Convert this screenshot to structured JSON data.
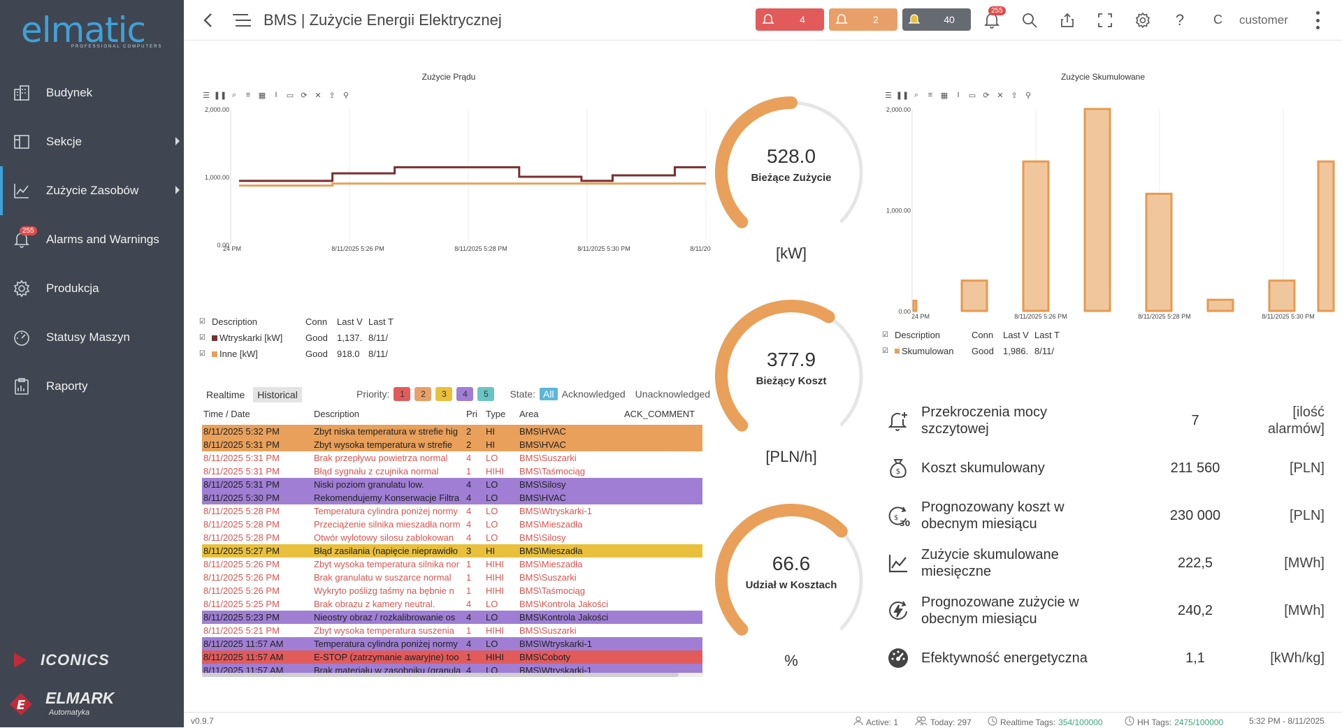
{
  "app": {
    "logo_text": "elmatic",
    "logo_tagline": "PROFESSIONAL COMPUTERS",
    "title": "BMS | Zużycie Energii Elektrycznej",
    "version": "v0.9.7",
    "footer_brand_1": "ICONICS",
    "footer_brand_2": "ELMARK",
    "footer_brand_2_sub": "Automatyka"
  },
  "sidebar": {
    "items": [
      {
        "label": "Budynek",
        "icon": "building-icon",
        "submenu": false
      },
      {
        "label": "Sekcje",
        "icon": "sections-icon",
        "submenu": true
      },
      {
        "label": "Zużycie Zasobów",
        "icon": "line-chart-icon",
        "submenu": true,
        "active": true
      },
      {
        "label": "Alarms and Warnings",
        "icon": "bell-icon",
        "submenu": false,
        "badge": "255"
      },
      {
        "label": "Produkcja",
        "icon": "gear-icon",
        "submenu": false
      },
      {
        "label": "Statusy Maszyn",
        "icon": "gauge-icon",
        "submenu": false
      },
      {
        "label": "Raporty",
        "icon": "clipboard-icon",
        "submenu": false
      }
    ]
  },
  "topbar": {
    "alarm_counts": [
      {
        "count": "4",
        "color": "#e15b5b"
      },
      {
        "count": "2",
        "color": "#e8a068"
      },
      {
        "count": "40",
        "color": "#666b72"
      }
    ],
    "notification_badge": "255",
    "user_initial": "C",
    "user_name": "customer"
  },
  "charts": {
    "trend": {
      "title": "Zużycie Prądu",
      "y_ticks": [
        "2,000.00",
        "1,000.00",
        "0.00"
      ],
      "x_ticks": [
        "24 PM",
        "8/11/2025 5:26 PM",
        "8/11/2025 5:28 PM",
        "8/11/2025 5:30 PM",
        "8/11/20"
      ],
      "legend_header": {
        "description": "Description",
        "conn": "Conn",
        "last_v": "Last V",
        "last_t": "Last T"
      },
      "legend_rows": [
        {
          "description": "Wtryskarki [kW]",
          "conn": "Good",
          "last_v": "1,137.",
          "last_t": "8/11/",
          "color": "#7b2e2e"
        },
        {
          "description": "Inne [kW]",
          "conn": "Good",
          "last_v": "918.0",
          "last_t": "8/11/",
          "color": "#e8a05a"
        }
      ]
    },
    "cumulative": {
      "title": "Zużycie Skumulowane",
      "y_ticks": [
        "2,000.00",
        "1,000.00",
        "0.00"
      ],
      "x_ticks": [
        "24 PM",
        "8/11/2025 5:26 PM",
        "8/11/2025 5:28 PM",
        "8/11/2025 5:30 PM"
      ],
      "legend_header": {
        "description": "Description",
        "conn": "Conn",
        "last_v": "Last V",
        "last_t": "Last T"
      },
      "legend_rows": [
        {
          "description": "Skumulowan",
          "conn": "Good",
          "last_v": "1,986.",
          "last_t": "8/11/",
          "color": "#e8b88a"
        }
      ]
    }
  },
  "chart_data": [
    {
      "type": "line",
      "title": "Zużycie Prądu",
      "ylim": [
        0,
        2000
      ],
      "x": [
        "5:24:00 PM",
        "5:24:30 PM",
        "5:25:00 PM",
        "5:25:30 PM",
        "5:26:00 PM",
        "5:26:30 PM",
        "5:27:00 PM",
        "5:27:30 PM",
        "5:28:00 PM",
        "5:28:30 PM",
        "5:29:00 PM",
        "5:29:30 PM",
        "5:30:00 PM",
        "5:30:30 PM",
        "5:31:00 PM",
        "5:31:30 PM"
      ],
      "series": [
        {
          "name": "Wtryskarki [kW]",
          "color": "#7b2e2e",
          "values": [
            940,
            940,
            940,
            1050,
            1050,
            1140,
            1140,
            1140,
            1140,
            1000,
            1000,
            940,
            1020,
            1020,
            1140,
            1140
          ]
        },
        {
          "name": "Inne [kW]",
          "color": "#e8a05a",
          "values": [
            870,
            870,
            870,
            900,
            900,
            900,
            900,
            900,
            900,
            900,
            900,
            900,
            900,
            900,
            900,
            900
          ]
        }
      ]
    },
    {
      "type": "bar",
      "title": "Zużycie Skumulowane",
      "ylim": [
        0,
        2000
      ],
      "categories": [
        "5:24:30 PM",
        "5:25:30 PM",
        "5:26:30 PM",
        "5:27:30 PM",
        "5:28:30 PM",
        "5:29:30 PM",
        "5:30:30 PM",
        "5:31:30 PM"
      ],
      "series": [
        {
          "name": "Skumulowan",
          "color": "#e8b88a",
          "values": [
            100,
            300,
            1480,
            2000,
            1160,
            110,
            300,
            1480
          ]
        }
      ]
    }
  ],
  "gauges": [
    {
      "value": "528.0",
      "label": "Bieżące Zużycie",
      "unit": "[kW]",
      "fraction": 0.5
    },
    {
      "value": "377.9",
      "label": "Bieżący Koszt",
      "unit": "[PLN/h]",
      "fraction": 0.62
    },
    {
      "value": "66.6",
      "label": "Udział w Kosztach",
      "unit": "%",
      "fraction": 0.67
    }
  ],
  "kpis": [
    {
      "icon": "bell-plus-icon",
      "label": "Przekroczenia mocy szczytowej",
      "value": "7",
      "unit": "[ilość alarmów]"
    },
    {
      "icon": "money-bag-icon",
      "label": "Koszt skumulowany",
      "value": "211 560",
      "unit": "[PLN]"
    },
    {
      "icon": "cost-forecast-icon",
      "label": "Prognozowany koszt w obecnym miesiącu",
      "value": "230 000",
      "unit": "[PLN]"
    },
    {
      "icon": "line-chart-icon",
      "label": "Zużycie skumulowane miesięczne",
      "value": "222,5",
      "unit": "[MWh]"
    },
    {
      "icon": "energy-forecast-icon",
      "label": "Prognozowane zużycie w obecnym miesiącu",
      "value": "240,2",
      "unit": "[MWh]"
    },
    {
      "icon": "speedometer-icon",
      "label": "Efektywność energetyczna",
      "value": "1,1",
      "unit": "[kWh/kg]"
    }
  ],
  "alarms": {
    "tabs": [
      "Realtime",
      "Historical"
    ],
    "priority_label": "Priority:",
    "priorities": [
      {
        "label": "1",
        "color": "#e15b5b"
      },
      {
        "label": "2",
        "color": "#e8a068"
      },
      {
        "label": "3",
        "color": "#e8c03c"
      },
      {
        "label": "4",
        "color": "#9f7ed4"
      },
      {
        "label": "5",
        "color": "#6bc4c4"
      }
    ],
    "state_label": "State:",
    "states": [
      "All",
      "Acknowledged",
      "Unacknowledged"
    ],
    "columns": [
      "Time / Date",
      "Description",
      "Pri",
      "Type",
      "Area",
      "ACK_COMMENT"
    ],
    "rows": [
      {
        "time": "8/11/2025 5:32 PM",
        "desc": "Zbyt niska temperatura w strefie hig",
        "pri": "2",
        "type": "HI",
        "area": "BMS\\HVAC",
        "ack": "",
        "bg": "#e8a05a",
        "fg": "#222"
      },
      {
        "time": "8/11/2025 5:31 PM",
        "desc": "Zbyt wysoka temperatura w strefie",
        "pri": "2",
        "type": "HI",
        "area": "BMS\\HVAC",
        "ack": "",
        "bg": "#e8a05a",
        "fg": "#222"
      },
      {
        "time": "8/11/2025 5:31 PM",
        "desc": "Brak przepływu powietrza normal",
        "pri": "4",
        "type": "LO",
        "area": "BMS\\Suszarki",
        "ack": "",
        "bg": "#ffffff",
        "fg": "#d9534f"
      },
      {
        "time": "8/11/2025 5:31 PM",
        "desc": "Błąd sygnału z czujnika normal",
        "pri": "1",
        "type": "HIHI",
        "area": "BMS\\Taśmociąg",
        "ack": "",
        "bg": "#ffffff",
        "fg": "#d9534f"
      },
      {
        "time": "8/11/2025 5:31 PM",
        "desc": "Niski poziom granulatu low.",
        "pri": "4",
        "type": "LO",
        "area": "BMS\\Silosy",
        "ack": "",
        "bg": "#9f7ed4",
        "fg": "#222"
      },
      {
        "time": "8/11/2025 5:30 PM",
        "desc": "Rekomendujemy Konserwacje Filtra",
        "pri": "4",
        "type": "LO",
        "area": "BMS\\HVAC",
        "ack": "",
        "bg": "#9f7ed4",
        "fg": "#222"
      },
      {
        "time": "8/11/2025 5:28 PM",
        "desc": "Temperatura cylindra poniżej normy",
        "pri": "4",
        "type": "LO",
        "area": "BMS\\Wtryskarki-1",
        "ack": "",
        "bg": "#ffffff",
        "fg": "#d9534f"
      },
      {
        "time": "8/11/2025 5:28 PM",
        "desc": "Przeciążenie silnika mieszadła norm",
        "pri": "4",
        "type": "LO",
        "area": "BMS\\Mieszadła",
        "ack": "",
        "bg": "#ffffff",
        "fg": "#d9534f"
      },
      {
        "time": "8/11/2025 5:28 PM",
        "desc": "Otwór wylotowy silosu zablokowan",
        "pri": "4",
        "type": "LO",
        "area": "BMS\\Silosy",
        "ack": "",
        "bg": "#ffffff",
        "fg": "#d9534f"
      },
      {
        "time": "8/11/2025 5:27 PM",
        "desc": "Błąd zasilania (napięcie nieprawidło",
        "pri": "3",
        "type": "HI",
        "area": "BMS\\Mieszadła",
        "ack": "",
        "bg": "#e8c03c",
        "fg": "#222"
      },
      {
        "time": "8/11/2025 5:26 PM",
        "desc": "Zbyt wysoka temperatura silnika nor",
        "pri": "1",
        "type": "HIHI",
        "area": "BMS\\Mieszadła",
        "ack": "",
        "bg": "#ffffff",
        "fg": "#d9534f"
      },
      {
        "time": "8/11/2025 5:26 PM",
        "desc": "Brak granulatu w suszarce normal",
        "pri": "1",
        "type": "HIHI",
        "area": "BMS\\Suszarki",
        "ack": "",
        "bg": "#ffffff",
        "fg": "#d9534f"
      },
      {
        "time": "8/11/2025 5:26 PM",
        "desc": " Wykryto poślizg taśmy na bębnie n",
        "pri": "1",
        "type": "HIHI",
        "area": "BMS\\Taśmociąg",
        "ack": "",
        "bg": "#ffffff",
        "fg": "#d9534f"
      },
      {
        "time": "8/11/2025 5:25 PM",
        "desc": "Brak obrazu z kamery neutral.",
        "pri": "4",
        "type": "LO",
        "area": "BMS\\Kontrola Jakości",
        "ack": "",
        "bg": "#ffffff",
        "fg": "#d9534f"
      },
      {
        "time": "8/11/2025 5:23 PM",
        "desc": "Nieostry obraz / rozkalibrowanie os",
        "pri": "4",
        "type": "LO",
        "area": "BMS\\Kontrola Jakości",
        "ack": "",
        "bg": "#9f7ed4",
        "fg": "#222"
      },
      {
        "time": "8/11/2025 5:21 PM",
        "desc": "Zbyt wysoka temperatura suszenia",
        "pri": "1",
        "type": "HIHI",
        "area": "BMS\\Suszarki",
        "ack": "",
        "bg": "#ffffff",
        "fg": "#d9534f"
      },
      {
        "time": "8/11/2025 11:57 AM",
        "desc": "Temperatura cylindra poniżej normy",
        "pri": "4",
        "type": "LO",
        "area": "BMS\\Wtryskarki-1",
        "ack": "",
        "bg": "#9f7ed4",
        "fg": "#222"
      },
      {
        "time": "8/11/2025 11:57 AM",
        "desc": "E-STOP (zatrzymanie awaryjne) too",
        "pri": "1",
        "type": "HIHI",
        "area": "BMS\\Coboty",
        "ack": "",
        "bg": "#e15b5b",
        "fg": "#222"
      },
      {
        "time": "8/11/2025 11:57 AM",
        "desc": "Brak materiału w zasobniku (granula",
        "pri": "4",
        "type": "LO",
        "area": "BMS\\Wtryskarki-1",
        "ack": "",
        "bg": "#9f7ed4",
        "fg": "#222"
      }
    ]
  },
  "statusbar": {
    "active": "Active: 1",
    "today": "Today: 297",
    "realtime_label": "Realtime Tags:",
    "realtime_value": "354/100000",
    "hh_label": "HH Tags:",
    "hh_value": "2475/100000",
    "datetime": "5:32 PM - 8/11/2025"
  }
}
